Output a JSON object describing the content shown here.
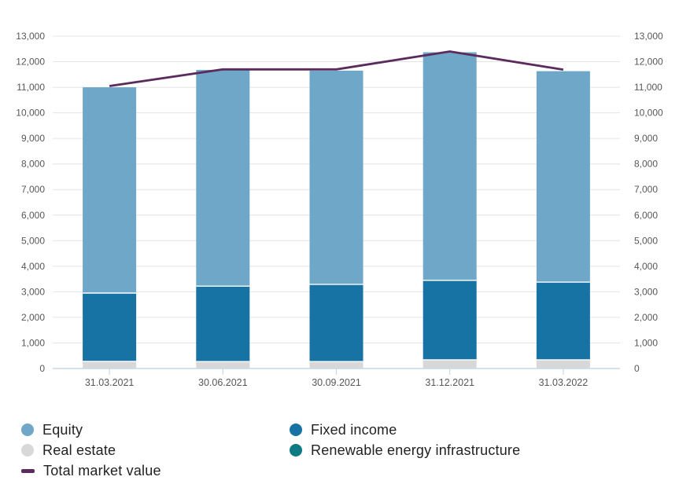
{
  "chart_data": {
    "type": "bar",
    "stacked": true,
    "title": "",
    "xlabel": "",
    "ylabel": "",
    "categories": [
      "31.03.2021",
      "30.06.2021",
      "30.09.2021",
      "31.12.2021",
      "31.03.2022"
    ],
    "series": [
      {
        "name": "Equity",
        "color": "#6ea7c8",
        "values": [
          8050,
          8460,
          8360,
          8920,
          8250
        ]
      },
      {
        "name": "Fixed income",
        "color": "#1673a3",
        "values": [
          2670,
          2950,
          3020,
          3110,
          3040
        ]
      },
      {
        "name": "Real estate",
        "color": "#d8d8d8",
        "values": [
          280,
          270,
          270,
          340,
          340
        ]
      },
      {
        "name": "Renewable energy infrastructure",
        "color": "#0e7a84",
        "values": [
          0,
          0,
          0,
          0,
          0
        ]
      }
    ],
    "stack_order_bottom_to_top": [
      "Real estate",
      "Fixed income",
      "Equity",
      "Renewable energy infrastructure"
    ],
    "bar_totals": [
      11000,
      11680,
      11650,
      12370,
      11630
    ],
    "line_series": {
      "name": "Total market value",
      "color": "#5c2b5e",
      "values": [
        11050,
        11700,
        11700,
        12400,
        11690
      ]
    },
    "ylim": [
      0,
      13000
    ],
    "ytick_step": 1000,
    "ytick_labels": [
      "0",
      "1,000",
      "2,000",
      "3,000",
      "4,000",
      "5,000",
      "6,000",
      "7,000",
      "8,000",
      "9,000",
      "10,000",
      "11,000",
      "12,000",
      "13,000"
    ],
    "grid": true,
    "dual_axis": true,
    "legend_position": "bottom"
  },
  "colors": {
    "gridline": "#e4e4e4",
    "axis_line": "#c9d8e3",
    "axis_text": "#575757",
    "legend_text": "#222222"
  },
  "legend": {
    "column1": [
      {
        "label": "Equity",
        "marker": "circle",
        "color": "#6ea7c8"
      },
      {
        "label": "Real estate",
        "marker": "circle",
        "color": "#d8d8d8"
      },
      {
        "label": "Total market value",
        "marker": "dash",
        "color": "#5c2b5e"
      }
    ],
    "column2": [
      {
        "label": "Fixed income",
        "marker": "circle",
        "color": "#1673a3"
      },
      {
        "label": "Renewable energy infrastructure",
        "marker": "circle",
        "color": "#0e7a84"
      }
    ]
  }
}
